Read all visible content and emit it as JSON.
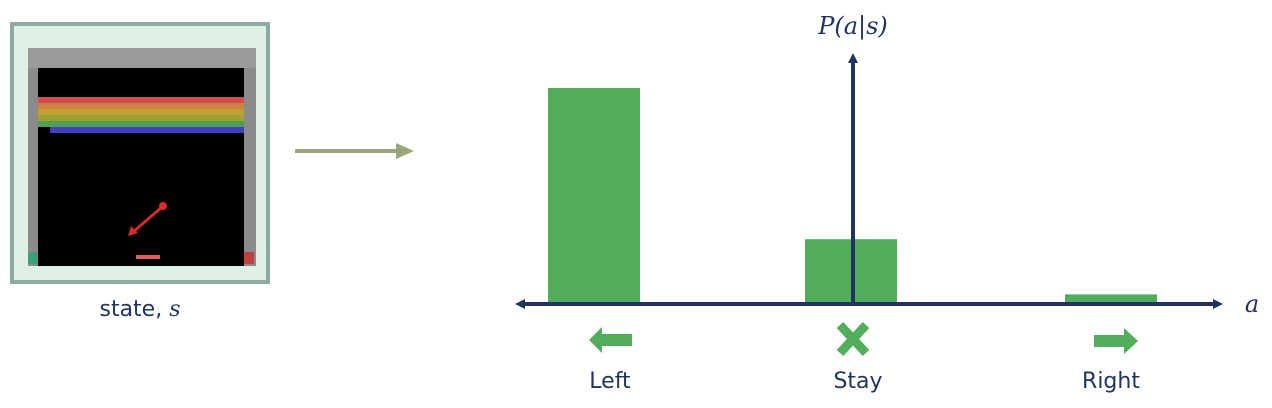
{
  "state_panel": {
    "label": "state, ",
    "symbol": "s",
    "border_color": "#8fa9a5",
    "background_color": "#dff1e4",
    "screen_background": "#000000",
    "brick_rows": [
      "#d05050",
      "#d08040",
      "#c0a030",
      "#a0a030",
      "#50a050",
      "#4040c0"
    ]
  },
  "flow_arrow": {
    "color": "#9aa67a"
  },
  "chart_data": {
    "type": "bar",
    "categories": [
      "Left",
      "Stay",
      "Right"
    ],
    "values": [
      0.9,
      0.27,
      0.04
    ],
    "ylabel": "P(a|s)",
    "xlabel": "a",
    "ylim": [
      0,
      1
    ],
    "grid": false,
    "bar_color": "#52ad5c",
    "axis_color": "#1f3460"
  },
  "actions": [
    {
      "label": "Left",
      "icon": "left-arrow-icon"
    },
    {
      "label": "Stay",
      "icon": "x-mark-icon"
    },
    {
      "label": "Right",
      "icon": "right-arrow-icon"
    }
  ]
}
